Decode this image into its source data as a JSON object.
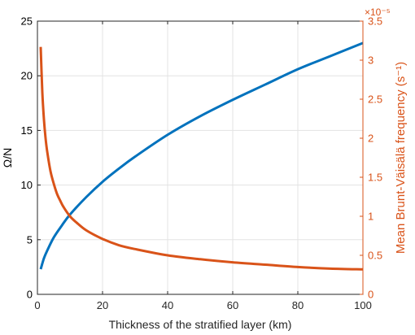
{
  "chart_data": {
    "type": "line",
    "xlabel": "Thickness of the stratified layer (km)",
    "xlim": [
      0,
      100
    ],
    "xticks": [
      0,
      20,
      40,
      60,
      80,
      100
    ],
    "grid": true,
    "left_axis": {
      "label": "Ω/N",
      "ylim": [
        0,
        25
      ],
      "ticks": [
        0,
        5,
        10,
        15,
        20,
        25
      ],
      "color": "#000000"
    },
    "right_axis": {
      "label": "Mean Brunt-Väisälä frequency (s⁻¹)",
      "ylim": [
        0,
        3.5
      ],
      "ticks": [
        0,
        0.5,
        1,
        1.5,
        2,
        2.5,
        3,
        3.5
      ],
      "exponent_label": "×10⁻⁵",
      "color": "#d95319"
    },
    "series": [
      {
        "axis": "left",
        "color": "#0072bd",
        "x": [
          1,
          2,
          3,
          5,
          7.5,
          10,
          15,
          20,
          25,
          30,
          40,
          50,
          60,
          70,
          80,
          90,
          100
        ],
        "y": [
          2.3,
          3.3,
          4.0,
          5.2,
          6.3,
          7.3,
          8.9,
          10.3,
          11.5,
          12.6,
          14.6,
          16.3,
          17.8,
          19.2,
          20.6,
          21.8,
          23.0
        ]
      },
      {
        "axis": "right",
        "color": "#d95319",
        "x": [
          1,
          1.5,
          2,
          2.5,
          3,
          4,
          5,
          6,
          7,
          8,
          10,
          12,
          15,
          20,
          25,
          30,
          40,
          50,
          60,
          70,
          80,
          90,
          100
        ],
        "y": [
          3.17,
          2.59,
          2.24,
          2.0,
          1.83,
          1.58,
          1.42,
          1.29,
          1.2,
          1.12,
          1.0,
          0.92,
          0.82,
          0.71,
          0.63,
          0.58,
          0.5,
          0.45,
          0.41,
          0.38,
          0.35,
          0.33,
          0.32
        ]
      }
    ]
  }
}
